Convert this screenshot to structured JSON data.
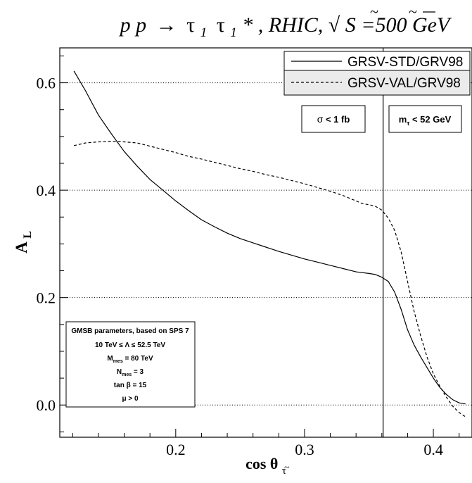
{
  "chart_data": {
    "type": "line",
    "title": {
      "lhs": "p p",
      "arrow": "→",
      "stau": "τ",
      "tilde": "~",
      "sub1": "1",
      "star": "*",
      "rest": ", RHIC, ",
      "sqrt": "√",
      "s": "S",
      "energy": "=500 GeV"
    },
    "xlabel": {
      "main": "cos θ",
      "sub": "τ",
      "tilde": "~"
    },
    "ylabel": {
      "main": "A",
      "sub": "L"
    },
    "xlim": [
      0.11,
      0.43
    ],
    "ylim": [
      -0.06,
      0.665
    ],
    "xticks": [
      {
        "value": 0.2,
        "label": "0.2"
      },
      {
        "value": 0.3,
        "label": "0.3"
      },
      {
        "value": 0.4,
        "label": "0.4"
      }
    ],
    "yticks": [
      {
        "value": 0.0,
        "label": "0.0"
      },
      {
        "value": 0.2,
        "label": "0.2"
      },
      {
        "value": 0.4,
        "label": "0.4"
      },
      {
        "value": 0.6,
        "label": "0.6"
      }
    ],
    "grid": "horizontal dotted at y ticks",
    "vline": 0.361,
    "series": [
      {
        "name": "GRSV-STD/GRV98",
        "style": "solid",
        "color": "#000000",
        "points": [
          [
            0.121,
            0.622
          ],
          [
            0.13,
            0.585
          ],
          [
            0.14,
            0.54
          ],
          [
            0.15,
            0.505
          ],
          [
            0.16,
            0.472
          ],
          [
            0.17,
            0.445
          ],
          [
            0.18,
            0.42
          ],
          [
            0.19,
            0.4
          ],
          [
            0.2,
            0.38
          ],
          [
            0.21,
            0.362
          ],
          [
            0.22,
            0.345
          ],
          [
            0.23,
            0.332
          ],
          [
            0.24,
            0.32
          ],
          [
            0.25,
            0.31
          ],
          [
            0.26,
            0.302
          ],
          [
            0.27,
            0.294
          ],
          [
            0.28,
            0.286
          ],
          [
            0.29,
            0.279
          ],
          [
            0.3,
            0.272
          ],
          [
            0.31,
            0.266
          ],
          [
            0.32,
            0.26
          ],
          [
            0.33,
            0.254
          ],
          [
            0.34,
            0.248
          ],
          [
            0.35,
            0.245
          ],
          [
            0.355,
            0.243
          ],
          [
            0.36,
            0.238
          ],
          [
            0.365,
            0.23
          ],
          [
            0.37,
            0.21
          ],
          [
            0.375,
            0.178
          ],
          [
            0.38,
            0.14
          ],
          [
            0.385,
            0.112
          ],
          [
            0.39,
            0.09
          ],
          [
            0.395,
            0.07
          ],
          [
            0.4,
            0.05
          ],
          [
            0.405,
            0.033
          ],
          [
            0.41,
            0.02
          ],
          [
            0.415,
            0.01
          ],
          [
            0.42,
            0.004
          ],
          [
            0.425,
            0.002
          ]
        ]
      },
      {
        "name": "GRSV-VAL/GRV98",
        "style": "dashed",
        "color": "#000000",
        "points": [
          [
            0.121,
            0.483
          ],
          [
            0.13,
            0.488
          ],
          [
            0.14,
            0.49
          ],
          [
            0.15,
            0.491
          ],
          [
            0.16,
            0.49
          ],
          [
            0.17,
            0.488
          ],
          [
            0.18,
            0.482
          ],
          [
            0.19,
            0.476
          ],
          [
            0.2,
            0.47
          ],
          [
            0.21,
            0.463
          ],
          [
            0.22,
            0.458
          ],
          [
            0.23,
            0.452
          ],
          [
            0.24,
            0.446
          ],
          [
            0.25,
            0.44
          ],
          [
            0.26,
            0.435
          ],
          [
            0.27,
            0.429
          ],
          [
            0.28,
            0.424
          ],
          [
            0.29,
            0.418
          ],
          [
            0.3,
            0.412
          ],
          [
            0.31,
            0.405
          ],
          [
            0.32,
            0.398
          ],
          [
            0.33,
            0.39
          ],
          [
            0.34,
            0.38
          ],
          [
            0.345,
            0.375
          ],
          [
            0.35,
            0.373
          ],
          [
            0.355,
            0.37
          ],
          [
            0.36,
            0.363
          ],
          [
            0.365,
            0.348
          ],
          [
            0.37,
            0.325
          ],
          [
            0.375,
            0.285
          ],
          [
            0.38,
            0.23
          ],
          [
            0.385,
            0.175
          ],
          [
            0.39,
            0.13
          ],
          [
            0.395,
            0.09
          ],
          [
            0.4,
            0.058
          ],
          [
            0.405,
            0.035
          ],
          [
            0.41,
            0.015
          ],
          [
            0.415,
            -0.002
          ],
          [
            0.42,
            -0.014
          ],
          [
            0.425,
            -0.022
          ]
        ]
      }
    ],
    "legend": {
      "placement": "top-right",
      "entries": [
        {
          "label": "GRSV-STD/GRV98",
          "style": "solid"
        },
        {
          "label": "GRSV-VAL/GRV98",
          "style": "dashed"
        }
      ]
    },
    "annotations": {
      "sigma": {
        "symbol": "σ",
        "text": " < 1 fb"
      },
      "mass": {
        "m": "m",
        "sub": "τ",
        "text": " < 52 GeV"
      },
      "gmsb": [
        {
          "id": "g1",
          "text": "GMSB parameters, based on SPS 7"
        },
        {
          "id": "g2",
          "text": "10 TeV ≤ Λ ≤ 52.5 TeV"
        },
        {
          "id": "g3",
          "base": "M",
          "sub": "mes",
          "text": " = 80 TeV"
        },
        {
          "id": "g4",
          "base": "N",
          "sub": "mes",
          "text": " = 3"
        },
        {
          "id": "g5",
          "text": "tan β = 15"
        },
        {
          "id": "g6",
          "text": "μ > 0"
        }
      ]
    }
  }
}
